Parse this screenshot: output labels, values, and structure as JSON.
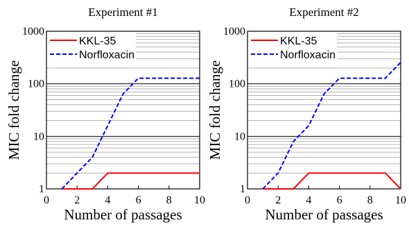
{
  "chart_data": [
    {
      "type": "line",
      "title": "Experiment #1",
      "xlabel": "Number of passages",
      "ylabel": "MIC fold change",
      "xlim": [
        0,
        10
      ],
      "ylim": [
        1,
        1000
      ],
      "yscale": "log",
      "x_ticks": [
        "0",
        "2",
        "4",
        "6",
        "8",
        "10"
      ],
      "y_ticks": [
        "1",
        "10",
        "100",
        "1000"
      ],
      "grid": true,
      "legend_position": "top-left",
      "series": [
        {
          "name": "KKL-35",
          "color": "#ff0000",
          "dash": "solid",
          "x": [
            1,
            2,
            3,
            4,
            5,
            6,
            7,
            8,
            9,
            10
          ],
          "y": [
            1,
            1,
            1,
            2,
            2,
            2,
            2,
            2,
            2,
            2
          ]
        },
        {
          "name": "Norfloxacin",
          "color": "#0000ff",
          "dash": "dashed",
          "x": [
            1,
            2,
            3,
            4,
            5,
            6,
            7,
            8,
            9,
            10
          ],
          "y": [
            1,
            2,
            4,
            16,
            64,
            128,
            128,
            128,
            128,
            128
          ]
        }
      ]
    },
    {
      "type": "line",
      "title": "Experiment #2",
      "xlabel": "Number of passages",
      "ylabel": "MIC fold change",
      "xlim": [
        0,
        10
      ],
      "ylim": [
        1,
        1000
      ],
      "yscale": "log",
      "x_ticks": [
        "0",
        "2",
        "4",
        "6",
        "8",
        "10"
      ],
      "y_ticks": [
        "1",
        "10",
        "100",
        "1000"
      ],
      "grid": true,
      "legend_position": "top-left",
      "series": [
        {
          "name": "KKL-35",
          "color": "#ff0000",
          "dash": "solid",
          "x": [
            1,
            2,
            3,
            4,
            5,
            6,
            7,
            8,
            9,
            10
          ],
          "y": [
            1,
            1,
            1,
            2,
            2,
            2,
            2,
            2,
            2,
            1
          ]
        },
        {
          "name": "Norfloxacin",
          "color": "#0000ff",
          "dash": "dashed",
          "x": [
            1,
            2,
            3,
            4,
            5,
            6,
            7,
            8,
            9,
            10
          ],
          "y": [
            1,
            2,
            8,
            16,
            64,
            128,
            128,
            128,
            128,
            256
          ]
        }
      ]
    }
  ]
}
